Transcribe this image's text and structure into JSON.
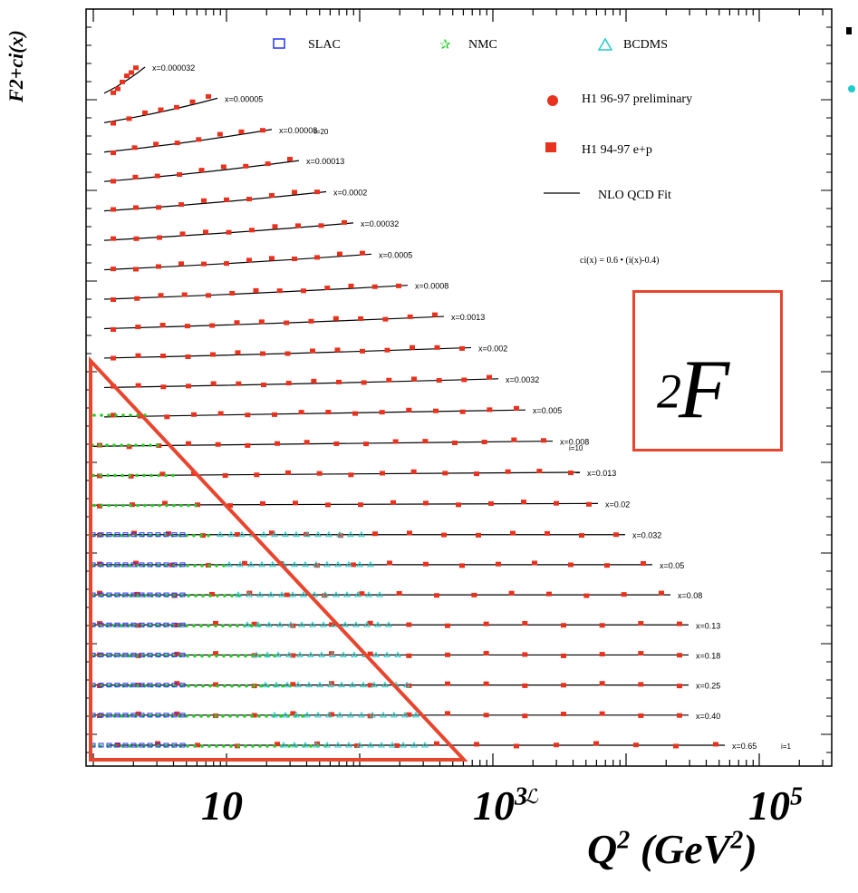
{
  "chart_data": {
    "type": "scatter",
    "x_scale": "log",
    "xlim": [
      1,
      100000
    ],
    "ylabel": "F2+ci(x)",
    "xlabel": "Q2 (GeV2)",
    "x_tick_labels": [
      "10",
      "10^3",
      "10^5"
    ],
    "series_names": [
      "SLAC",
      "NMC",
      "BCDMS",
      "H1 96-97 preliminary",
      "H1 94-97 e+p",
      "NLO QCD Fit"
    ],
    "formula_text": "ci(x) = 0.6 • (i(x)-0.4)",
    "x_bins": [
      "x=0.000032",
      "x=0.00005",
      "x=0.00008",
      "x=0.00013",
      "x=0.0002",
      "x=0.00032",
      "x=0.0005",
      "x=0.0008",
      "x=0.0013",
      "x=0.002",
      "x=0.0032",
      "x=0.005",
      "x=0.008",
      "x=0.013",
      "x=0.02",
      "x=0.032",
      "x=0.05",
      "x=0.08",
      "x=0.13",
      "x=0.18",
      "x=0.25",
      "x=0.40",
      "x=0.65"
    ],
    "annotations": [
      "i=20",
      "i=10",
      "i=1"
    ],
    "highlight_box_label": "F2"
  },
  "legend": {
    "slac": "SLAC",
    "nmc": "NMC",
    "bcdms": "BCDMS",
    "h1_96": "H1 96-97 preliminary",
    "h1_94": "H1 94-97 e+p",
    "fit": "NLO QCD Fit",
    "formula": "ci(x) = 0.6 • (i(x)-0.4)"
  },
  "axis": {
    "ylabel": "F2+ci(x)",
    "xtick_10": "10",
    "xtick_1e3_base": "10",
    "xtick_1e3_exp": "3",
    "xtick_1e5_base": "10",
    "xtick_1e5_exp": "5",
    "q_base": "Q",
    "q_exp": "2",
    "q_unit_base": " (GeV",
    "q_unit_exp": "2",
    "q_close": ")"
  },
  "f2_label": {
    "base": "F",
    "sub": "2"
  },
  "colors": {
    "h1": "#e8321e",
    "slac": "#2233ff",
    "nmc": "#22cc22",
    "bcdms": "#22cccc",
    "box": "#e8452e"
  }
}
